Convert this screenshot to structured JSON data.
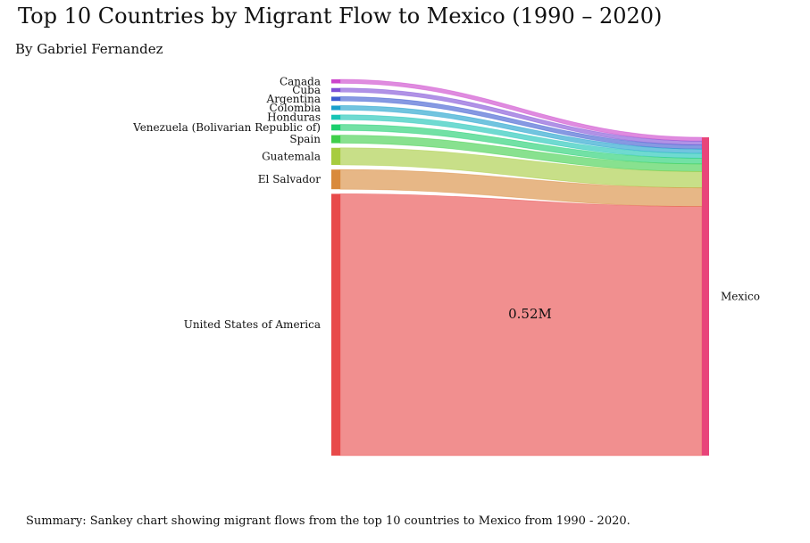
{
  "title": "Top 10 Countries by Migrant Flow to Mexico (1990 – 2020)",
  "subtitle": "By Gabriel Fernandez",
  "summary": "Summary: Sankey chart showing migrant flows from the top 10 countries to Mexico from 1990 - 2020.",
  "chart_data": {
    "type": "sankey",
    "title": "Top 10 Countries by Migrant Flow to Mexico (1990 – 2020)",
    "target": "Mexico",
    "value_unit": "migrants",
    "highlighted_label": "0.52M",
    "sources": [
      {
        "name": "Canada",
        "value": 8000,
        "color": "#cc44cc"
      },
      {
        "name": "Cuba",
        "value": 8000,
        "color": "#7f4fd6"
      },
      {
        "name": "Argentina",
        "value": 8500,
        "color": "#3c5bd0"
      },
      {
        "name": "Colombia",
        "value": 9000,
        "color": "#1aa0cc"
      },
      {
        "name": "Honduras",
        "value": 10000,
        "color": "#17c4b4"
      },
      {
        "name": "Venezuela (Bolivarian Republic of)",
        "value": 12000,
        "color": "#1ccf6e"
      },
      {
        "name": "Spain",
        "value": 16000,
        "color": "#3fcf4a"
      },
      {
        "name": "Guatemala",
        "value": 34000,
        "color": "#a7cc3f"
      },
      {
        "name": "El Salvador",
        "value": 39000,
        "color": "#d98a3c"
      },
      {
        "name": "United States of America",
        "value": 520000,
        "color": "#e84a4a"
      }
    ],
    "target_color": "#e8457a"
  }
}
